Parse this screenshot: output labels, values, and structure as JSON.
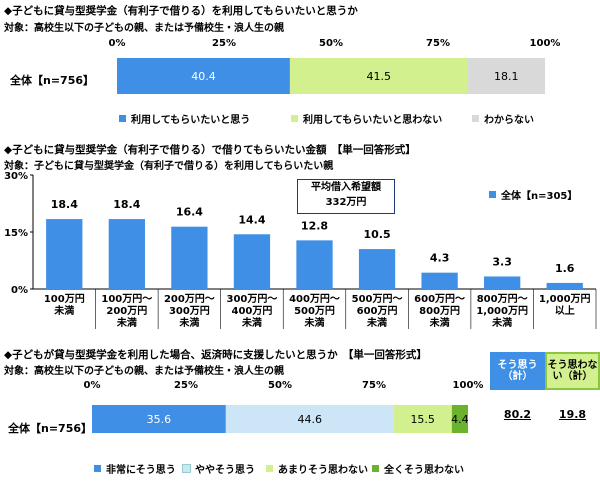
{
  "section1": {
    "title": "◆子どもに貸与型奨学金（有利子で借りる）を利用してもらいたいと思うか",
    "subtitle": "対象：高校生以下の子どもの親、または予備校生・浪人生の親",
    "row_label": "全体【n=756】",
    "legend": [
      "利用してもらいたいと思う",
      "利用してもらいたいと思わない",
      "わからない"
    ]
  },
  "section2": {
    "title": "◆子どもに貸与型奨学金（有利子で借りる）で借りてもらいたい金額　【単一回答形式】",
    "subtitle": "対象：子どもに貸与型奨学金（有利子で借りる）を利用してもらいたい親",
    "avg_line1": "平均借入希望額",
    "avg_line2": "332万円",
    "legend": "全体【n=305】"
  },
  "section3": {
    "title": "◆子どもが貸与型奨学金を利用した場合、返済時に支援したいと思うか　【単一回答形式】",
    "subtitle": "対象：高校生以下の子どもの親、または予備校生・浪人生の親",
    "row_label": "全体【n=756】",
    "legend": [
      "非常にそう思う",
      "ややそう思う",
      "あまりそう思わない",
      "全くそう思わない"
    ],
    "sum_yes_label": "そう思う（計）",
    "sum_yes_value": "80.2",
    "sum_no_label": "そう思わない（計）",
    "sum_no_value": "19.8"
  },
  "chart_data": [
    {
      "type": "bar",
      "orientation": "horizontal-stacked",
      "title": "◆子どもに貸与型奨学金（有利子で借りる）を利用してもらいたいと思うか",
      "categories": [
        "全体【n=756】"
      ],
      "xticks": [
        "0%",
        "25%",
        "50%",
        "75%",
        "100%"
      ],
      "xlim": [
        0,
        100
      ],
      "series": [
        {
          "name": "利用してもらいたいと思う",
          "values": [
            40.4
          ],
          "color": "#3f8fe6"
        },
        {
          "name": "利用してもらいたいと思わない",
          "values": [
            41.5
          ],
          "color": "#d2f08e"
        },
        {
          "name": "わからない",
          "values": [
            18.1
          ],
          "color": "#d9d9d9"
        }
      ],
      "legend": "bottom"
    },
    {
      "type": "bar",
      "title": "◆子どもに貸与型奨学金（有利子で借りる）で借りてもらいたい金額　【単一回答形式】",
      "categories": [
        "100万円\n未満",
        "100万円～\n200万円\n未満",
        "200万円～\n300万円\n未満",
        "300万円～\n400万円\n未満",
        "400万円～\n500万円\n未満",
        "500万円～\n600万円\n未満",
        "600万円～\n800万円\n未満",
        "800万円～\n1,000万円\n未満",
        "1,000万円\n以上"
      ],
      "series": [
        {
          "name": "全体【n=305】",
          "values": [
            18.4,
            18.4,
            16.4,
            14.4,
            12.8,
            10.5,
            4.3,
            3.3,
            1.6
          ],
          "color": "#3f8fe6"
        }
      ],
      "yticks": [
        "0%",
        "15%",
        "30%"
      ],
      "ylim": [
        0,
        30
      ],
      "legend": "top-right"
    },
    {
      "type": "bar",
      "orientation": "horizontal-stacked",
      "title": "◆子どもが貸与型奨学金を利用した場合、返済時に支援したいと思うか　【単一回答形式】",
      "categories": [
        "全体【n=756】"
      ],
      "xticks": [
        "0%",
        "25%",
        "50%",
        "75%",
        "100%"
      ],
      "xlim": [
        0,
        100
      ],
      "series": [
        {
          "name": "非常にそう思う",
          "values": [
            35.6
          ],
          "color": "#3f8fe6"
        },
        {
          "name": "ややそう思う",
          "values": [
            44.6
          ],
          "color": "#cde6f7"
        },
        {
          "name": "あまりそう思わない",
          "values": [
            15.5
          ],
          "color": "#d2f08e"
        },
        {
          "name": "全くそう思わない",
          "values": [
            4.4
          ],
          "color": "#6db22e"
        }
      ],
      "legend": "bottom"
    }
  ]
}
